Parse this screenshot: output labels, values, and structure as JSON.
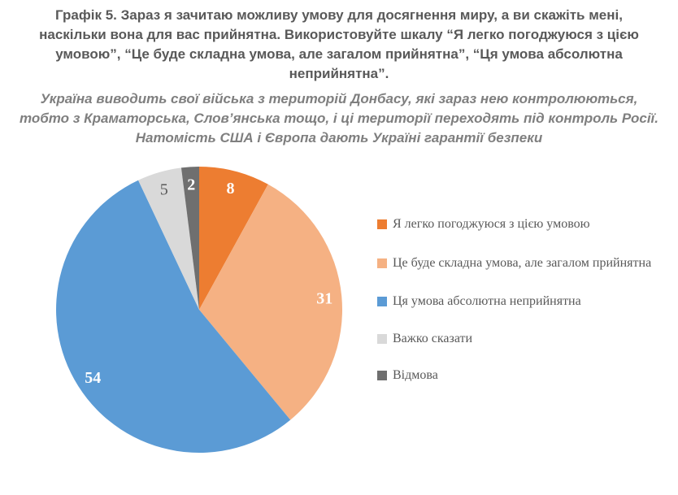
{
  "header": {
    "title_lines": [
      "Графік 5. Зараз я зачитаю можливу умову для досягнення миру, а ви скажіть мені,",
      "наскільки вона для вас прийнятна. Використовуйте шкалу “Я легко погоджуюся з цією",
      "умовою”, “Це буде складна умова, але загалом прийнятна”, “Ця умова абсолютна",
      "неприйнятна”."
    ],
    "title_color": "#595959",
    "subtitle_lines": [
      "Україна виводить свої війська з територій Донбасу, які зараз нею контролюються,",
      "тобто з Краматорська, Слов’янська тощо, і ці території переходять під контроль Росії.",
      "Натомість США і Європа дають Україні гарантії безпеки"
    ],
    "subtitle_color": "#7f7f7f"
  },
  "chart_data": {
    "type": "pie",
    "title": "Графік 5. Зараз я зачитаю можливу умову для досягнення миру, а ви скажіть мені, наскільки вона для вас прийнятна. Використовуйте шкалу “Я легко погоджуюся з цією умовою”, “Це буде складна умова, але загалом прийнятна”, “Ця умова абсолютна неприйнятна”.",
    "subtitle": "Україна виводить свої війська з територій Донбасу, які зараз нею контролюються, тобто з Краматорська, Слов’янська тощо, і ці території переходять під контроль Росії. Натомість США і Європа дають Україні гарантії безпеки",
    "categories": [
      "Я легко погоджуюся з цією умовою",
      "Це буде складна умова, але загалом прийнятна",
      "Ця умова абсолютна неприйнятна",
      "Важко сказати",
      "Відмова"
    ],
    "values": [
      8,
      31,
      54,
      5,
      2
    ],
    "colors": [
      "#ED7D31",
      "#F5B183",
      "#5B9BD5",
      "#D9D9D9",
      "#6F6F6F"
    ],
    "value_label_colors": [
      "#FFFFFF",
      "#FFFFFF",
      "#FFFFFF",
      "#595959",
      "#FFFFFF"
    ],
    "value_label_weights": [
      "bold",
      "bold",
      "bold",
      "normal",
      "bold"
    ],
    "start_angle_deg": 0,
    "direction": "clockwise",
    "legend_position": "right",
    "grid": "off"
  }
}
